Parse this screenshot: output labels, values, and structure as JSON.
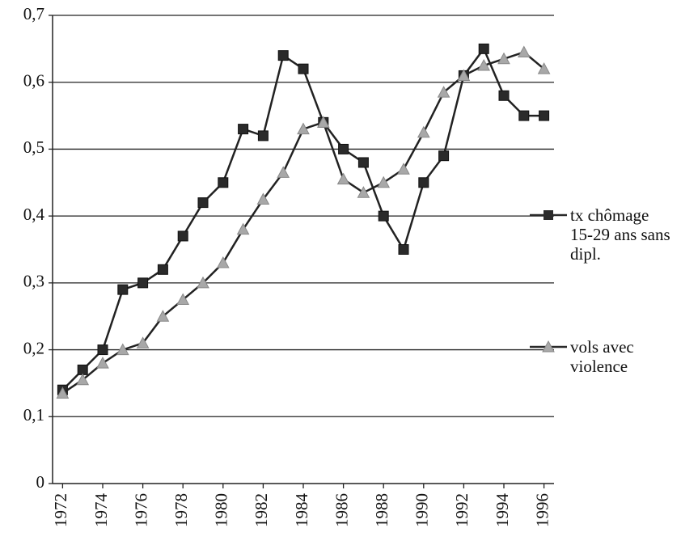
{
  "chart_data": {
    "type": "line",
    "x": [
      1972,
      1973,
      1974,
      1975,
      1976,
      1977,
      1978,
      1979,
      1980,
      1981,
      1982,
      1983,
      1984,
      1985,
      1986,
      1987,
      1988,
      1989,
      1990,
      1991,
      1992,
      1993,
      1994,
      1995,
      1996
    ],
    "series": [
      {
        "name": "tx chômage 15-29 ans sans dipl.",
        "color": "#2a2a2a",
        "marker": "square",
        "values": [
          0.14,
          0.17,
          0.2,
          0.29,
          0.3,
          0.32,
          0.37,
          0.42,
          0.45,
          0.53,
          0.52,
          0.64,
          0.62,
          0.54,
          0.5,
          0.48,
          0.4,
          0.35,
          0.45,
          0.49,
          0.61,
          0.65,
          0.58,
          0.55,
          0.55
        ]
      },
      {
        "name": "vols avec violence",
        "color": "#a8a8a8",
        "marker": "triangle",
        "values": [
          0.135,
          0.155,
          0.18,
          0.2,
          0.21,
          0.25,
          0.275,
          0.3,
          0.33,
          0.38,
          0.425,
          0.465,
          0.53,
          0.54,
          0.455,
          0.435,
          0.45,
          0.47,
          0.525,
          0.585,
          0.61,
          0.625,
          0.635,
          0.645,
          0.62
        ]
      }
    ],
    "xlim": [
      1971.5,
      1996.5
    ],
    "xticks": [
      1972,
      1974,
      1976,
      1978,
      1980,
      1982,
      1984,
      1986,
      1988,
      1990,
      1992,
      1994,
      1996
    ],
    "ylim": [
      0,
      0.7
    ],
    "yticks": [
      0,
      {
        "value": 0.1,
        "label": "0,1"
      },
      {
        "value": 0.2,
        "label": "0,2"
      },
      {
        "value": 0.3,
        "label": "0,3"
      },
      {
        "value": 0.4,
        "label": "0,4"
      },
      {
        "value": 0.5,
        "label": "0,5"
      },
      {
        "value": 0.6,
        "label": "0,6"
      },
      {
        "value": 0.7,
        "label": "0,7"
      }
    ],
    "grid": true,
    "legend": "right"
  }
}
